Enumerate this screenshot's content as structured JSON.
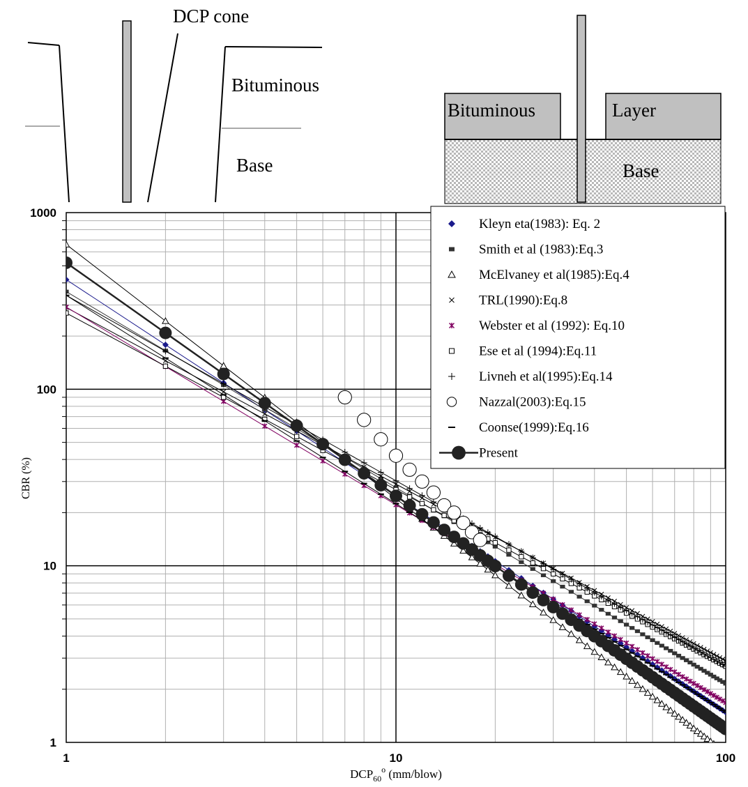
{
  "diagram": {
    "cone_label": "DCP cone",
    "left_layer_upper": "Bituminous",
    "left_layer_lower": "Base",
    "right_layer_upper_a": "Bituminous",
    "right_layer_upper_b": "Layer",
    "right_layer_lower": "Base",
    "colors": {
      "layer_fill": "#c0c0c0",
      "base_pattern": "#b8b8b8"
    }
  },
  "chart_data": {
    "type": "line",
    "xscale": "log",
    "yscale": "log",
    "xlim": [
      1,
      100
    ],
    "ylim": [
      1,
      1000
    ],
    "grid": true,
    "legend": "top-right",
    "ylabel": "CBR (%)",
    "xlabel_main": "DCP",
    "xlabel_sub": "60",
    "xlabel_sup": "o",
    "xlabel_unit": " (mm/blow)",
    "x_ticks": [
      {
        "value": 1,
        "label": "1"
      },
      {
        "value": 10,
        "label": "10"
      },
      {
        "value": 100,
        "label": "100"
      }
    ],
    "y_ticks": [
      {
        "value": 1,
        "label": "1"
      },
      {
        "value": 10,
        "label": "10"
      },
      {
        "value": 100,
        "label": "100"
      },
      {
        "value": 1000,
        "label": "1000"
      }
    ],
    "series": [
      {
        "name": "Kleyn eta(1983): Eq. 2",
        "marker": "diamond",
        "color": "#1a1a8c",
        "a": 417,
        "b": 1.225
      },
      {
        "name": "Smith et al (1983):Eq.3",
        "marker": "square",
        "color": "#333333",
        "a": 357,
        "b": 1.11
      },
      {
        "name": "McElvaney et al(1985):Eq.4",
        "marker": "triangle",
        "color": "#000000",
        "a": 660,
        "b": 1.44
      },
      {
        "name": "TRL(1990):Eq.8",
        "marker": "x",
        "color": "#000000",
        "a": 290,
        "b": 1.0
      },
      {
        "name": "Webster et al (1992): Eq.10",
        "marker": "star",
        "color": "#800060",
        "a": 292,
        "b": 1.12
      },
      {
        "name": "Ese et al (1994):Eq.11",
        "marker": "open-square",
        "color": "#000000",
        "a": 270,
        "b": 1.0
      },
      {
        "name": "Livneh et al(1995):Eq.14",
        "marker": "plus",
        "color": "#000000",
        "a": 340,
        "b": 1.05
      },
      {
        "name": "Nazzal(2003):Eq.15",
        "marker": "circle",
        "color": "#000000",
        "x": [
          7,
          8,
          9,
          10,
          11,
          12,
          13,
          14,
          15,
          16,
          17,
          18
        ],
        "y": [
          90,
          67,
          52,
          42,
          35,
          30,
          26,
          22,
          20,
          17.5,
          15.5,
          14
        ]
      },
      {
        "name": "Coonse(1999):Eq.16",
        "marker": "dash",
        "color": "#000000",
        "a": 340,
        "b": 1.18
      },
      {
        "name": "Present",
        "marker": "filled-circle",
        "color": "#222222",
        "a": 520,
        "b": 1.32
      }
    ]
  }
}
